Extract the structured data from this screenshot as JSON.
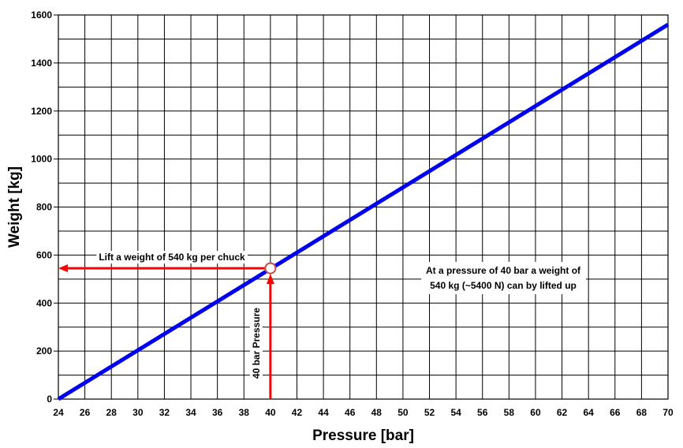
{
  "chart_data": {
    "type": "line",
    "xlabel": "Pressure [bar]",
    "ylabel": "Weight [kg]",
    "xlim": [
      24,
      70
    ],
    "ylim": [
      0,
      1600
    ],
    "x_ticks": [
      24,
      26,
      28,
      30,
      32,
      34,
      36,
      38,
      40,
      42,
      44,
      46,
      48,
      50,
      52,
      54,
      56,
      58,
      60,
      62,
      64,
      66,
      68,
      70
    ],
    "y_ticks": [
      0,
      200,
      400,
      600,
      800,
      1000,
      1200,
      1400,
      1600
    ],
    "grid": true,
    "series": [
      {
        "x": [
          24,
          70
        ],
        "y": [
          0,
          1560
        ],
        "color": "#0000ee"
      }
    ],
    "marker_point": {
      "x": 40,
      "y": 545
    },
    "annotations": {
      "left_arrow_label": "Lift a weight of 540 kg per chuck",
      "vertical_arrow_label": "40 bar Pressure",
      "note_line1": "At a pressure of 40 bar a weight of",
      "note_line2": "540 kg (~5400 N) can by lifted up"
    },
    "colors": {
      "line": "#0000ee",
      "arrow": "#ff0000",
      "grid": "#000000"
    }
  }
}
